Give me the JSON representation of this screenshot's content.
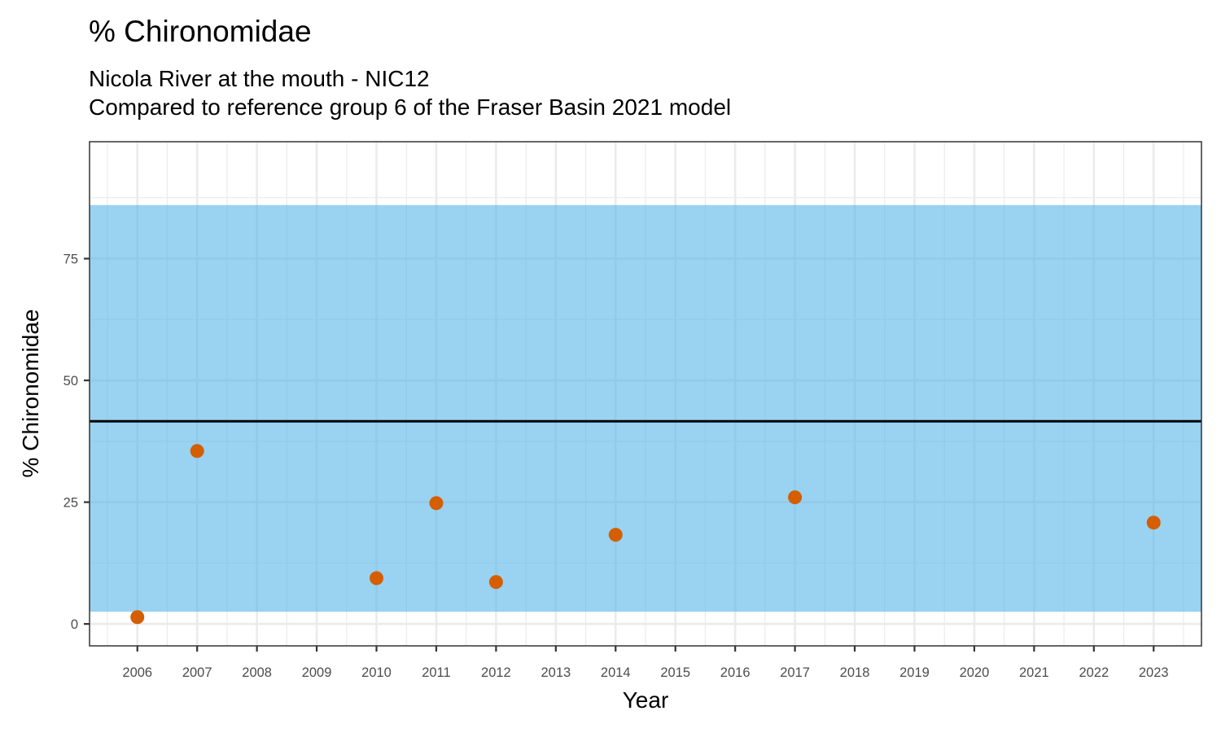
{
  "chart_data": {
    "type": "scatter",
    "title": "% Chironomidae",
    "subtitle_lines": [
      "Nicola River at the mouth - NIC12",
      "Compared to reference group 6 of the Fraser Basin 2021 model"
    ],
    "xlabel": "Year",
    "ylabel": "% Chironomidae",
    "x_ticks": [
      "2006",
      "2007",
      "2008",
      "2009",
      "2010",
      "2011",
      "2012",
      "2013",
      "2014",
      "2015",
      "2016",
      "2017",
      "2018",
      "2019",
      "2020",
      "2021",
      "2022",
      "2023"
    ],
    "y_ticks": [
      "0",
      "25",
      "50",
      "75"
    ],
    "xlim": [
      2005.2,
      2023.8
    ],
    "ylim": [
      -4.5,
      99
    ],
    "points": [
      {
        "x": 2006,
        "y": 1.4
      },
      {
        "x": 2007,
        "y": 35.5
      },
      {
        "x": 2010,
        "y": 9.4
      },
      {
        "x": 2011,
        "y": 24.8
      },
      {
        "x": 2012,
        "y": 8.6
      },
      {
        "x": 2014,
        "y": 18.3
      },
      {
        "x": 2017,
        "y": 26.0
      },
      {
        "x": 2023,
        "y": 20.8
      }
    ],
    "reference_band": {
      "min": 2.5,
      "max": 86.0,
      "color": "#56B4E9"
    },
    "reference_line": {
      "y": 41.6,
      "color": "#000000"
    },
    "point_color": "#D55E00",
    "grid": true,
    "legend": "none"
  }
}
